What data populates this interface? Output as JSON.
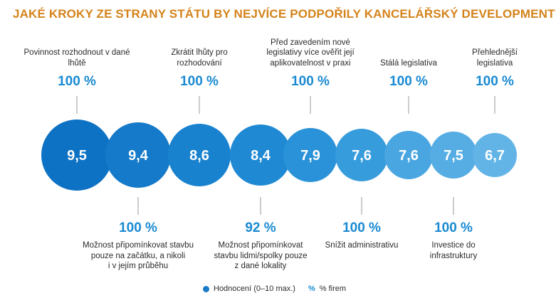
{
  "title": "JAKÉ KROKY ZE STRANY STÁTU BY NEJVÍCE PODPOŘILY KANCELÁŘSKÝ DEVELOPMENT?",
  "legend": {
    "rating": "Hodnocení (0–10 max.)",
    "percent_symbol": "%",
    "percent_label": "% firem"
  },
  "chart_data": {
    "type": "bubble",
    "scale_max": 10,
    "items": [
      {
        "label": "Povinnost rozhodnout v dané lhůtě",
        "rating": "9,5",
        "percent": "100 %",
        "label_position": "top"
      },
      {
        "label": "Možnost připomínkovat stavbu pouze na začátku, a nikoli i v jejím průběhu",
        "rating": "9,4",
        "percent": "100 %",
        "label_position": "bottom"
      },
      {
        "label": "Zkrátit lhůty pro rozhodování",
        "rating": "8,6",
        "percent": "100 %",
        "label_position": "top"
      },
      {
        "label": "Možnost připomínkovat stavbu lidmi/spolky pouze z dané lokality",
        "rating": "8,4",
        "percent": "92 %",
        "label_position": "bottom"
      },
      {
        "label": "Před zavedením nové legislativy více ověřit její aplikovatelnost v praxi",
        "rating": "7,9",
        "percent": "100 %",
        "label_position": "top"
      },
      {
        "label": "Snížit administrativu",
        "rating": "7,6",
        "percent": "100 %",
        "label_position": "bottom"
      },
      {
        "label": "Stálá legislativa",
        "rating": "7,6",
        "percent": "100 %",
        "label_position": "top"
      },
      {
        "label": "Investice do infrastruktury",
        "rating": "7,5",
        "percent": "100 %",
        "label_position": "bottom"
      },
      {
        "label": "Přehlednější legislativa",
        "rating": "6,7",
        "percent": "100 %",
        "label_position": "top"
      }
    ]
  }
}
